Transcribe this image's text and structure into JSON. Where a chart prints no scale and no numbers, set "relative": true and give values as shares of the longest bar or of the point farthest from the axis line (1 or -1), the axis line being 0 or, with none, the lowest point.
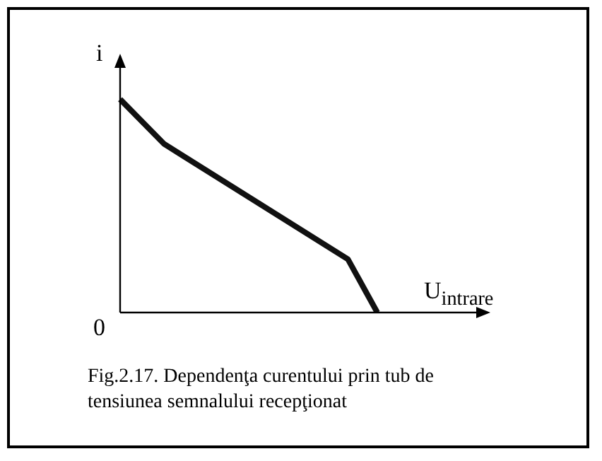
{
  "chart_data": {
    "type": "line",
    "relative": true,
    "ylabel": "i",
    "xlabel": "U$_{intrare}$",
    "categories": [
      null,
      null,
      null,
      null,
      null,
      null,
      null,
      null,
      null,
      null,
      null,
      null,
      null,
      null,
      null,
      null,
      null,
      null,
      null,
      null,
      null,
      null,
      null,
      null,
      null,
      null,
      null,
      null,
      null,
      null,
      null,
      null,
      null,
      null,
      null,
      null,
      null,
      null,
      null,
      null,
      null,
      null,
      null,
      null,
      null,
      null,
      null,
      null,
      null,
      null,
      null
    ],
    "series": [
      {
        "color": "#111111",
        "values": [
          1,
          null,
          null,
          null,
          null,
          null,
          0.79,
          null,
          null,
          null,
          null,
          null,
          null,
          null,
          null,
          null,
          null,
          null,
          null,
          null,
          null,
          null,
          null,
          null,
          null,
          null,
          null,
          null,
          null,
          null,
          null,
          0.25,
          null,
          null,
          null,
          0,
          null,
          null,
          null,
          null,
          null,
          null,
          null,
          null,
          null,
          null,
          null,
          null,
          null,
          null,
          null
        ]
      }
    ],
    "marker": "none",
    "line_style": "solid",
    "grid": false,
    "legend": false,
    "annotations": [
      "0",
      "Fig.2.17. Dependenţa curentului prin tub de tensiunea semnalului recepţionat"
    ]
  }
}
